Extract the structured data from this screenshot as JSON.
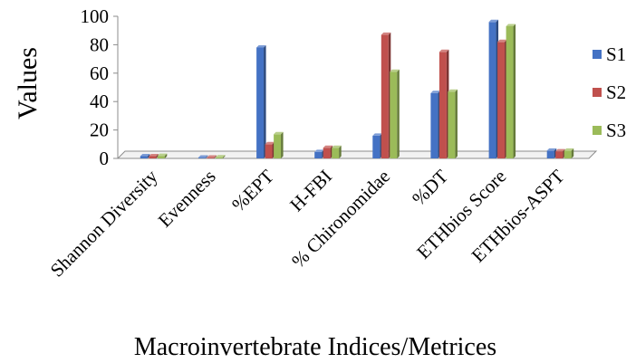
{
  "chart_data": {
    "type": "bar",
    "title": "",
    "xlabel": "Macroinvertebrate Indices/Metrices",
    "ylabel": "Values",
    "ylim": [
      0,
      100
    ],
    "yticks": [
      0,
      20,
      40,
      60,
      80,
      100
    ],
    "grid": false,
    "legend_position": "right",
    "categories": [
      "Shannon Diversity",
      "Evenness",
      "%EPT",
      "H-FBI",
      "% Chironomidae",
      "%DT",
      "ETHbios Score",
      "ETHbios-ASPT"
    ],
    "series": [
      {
        "name": "S1",
        "color": "#4472C4",
        "values": [
          1.6,
          0.6,
          78,
          4.5,
          16,
          46,
          96,
          5.5
        ]
      },
      {
        "name": "S2",
        "color": "#C0504D",
        "values": [
          1.6,
          0.6,
          10,
          7.5,
          87,
          75,
          82,
          5
        ]
      },
      {
        "name": "S3",
        "color": "#9BBB59",
        "values": [
          1.8,
          0.8,
          17,
          7.5,
          61,
          47,
          93,
          5.5
        ]
      }
    ]
  }
}
